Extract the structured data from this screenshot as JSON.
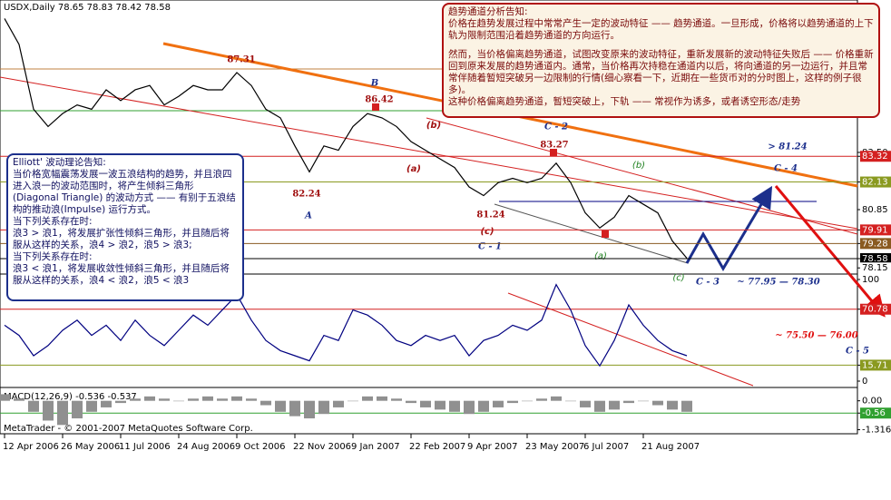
{
  "chart_data": [
    {
      "type": "line",
      "title": "USDX,Daily  78.65 78.83 78.42 78.58",
      "color": "#000000",
      "categories": [
        "12 Apr 2006",
        null,
        null,
        null,
        "26 May 2006",
        null,
        null,
        null,
        "11 Jul 2006",
        null,
        null,
        null,
        "24 Aug 2006",
        null,
        null,
        null,
        "9 Oct 2006",
        null,
        null,
        null,
        "22 Nov 2006",
        null,
        null,
        null,
        "9 Jan 2007",
        null,
        null,
        null,
        "22 Feb 2007",
        null,
        null,
        null,
        "9 Apr 2007",
        null,
        null,
        null,
        "23 May 2007",
        null,
        null,
        null,
        "6 Jul 2007",
        null,
        null,
        null,
        "21 Aug 2007",
        null,
        null,
        null
      ],
      "values": [
        89.7,
        88.5,
        85.5,
        84.7,
        85.3,
        85.7,
        85.5,
        86.4,
        85.9,
        86.4,
        86.6,
        85.7,
        86.1,
        86.6,
        86.4,
        86.4,
        87.2,
        86.6,
        85.5,
        85.1,
        83.8,
        82.6,
        83.8,
        83.6,
        84.7,
        85.3,
        85.1,
        84.7,
        84.0,
        83.6,
        83.2,
        82.8,
        81.9,
        81.5,
        82.1,
        82.3,
        82.1,
        82.3,
        83.0,
        82.1,
        80.7,
        80.0,
        80.5,
        81.5,
        81.1,
        80.7,
        79.4,
        78.6
      ],
      "ylim": [
        77.95,
        90.56
      ],
      "yticks": [
        {
          "value": 83.5,
          "label": "83.50"
        },
        83.32,
        82.13,
        80.85,
        79.91,
        79.28,
        78.58,
        78.15
      ],
      "ytick_colors": [
        "#ffffff",
        "#d42020",
        "#8a9a20",
        "#ffffff",
        "#d42020",
        "#8a5a20",
        "#000000",
        "#ffffff"
      ],
      "annotations": [
        "87.31",
        "86.42",
        "B",
        "82.24",
        "A",
        "81.24",
        "83.27",
        "C - 2",
        "C - 1",
        "(b)",
        "(a)",
        "(c)",
        "(b)",
        "(a)",
        "(c)",
        "> 81.24",
        "C - 4",
        "C - 3",
        "~ 77.95 — 78.30",
        "~ 75.50 — 76.00",
        "C - 5"
      ]
    },
    {
      "type": "line",
      "color": "#000080",
      "values": [
        55,
        45,
        25,
        35,
        50,
        60,
        45,
        55,
        40,
        60,
        45,
        35,
        50,
        65,
        55,
        70,
        85,
        60,
        40,
        30,
        25,
        20,
        45,
        40,
        70,
        65,
        55,
        40,
        35,
        45,
        40,
        45,
        25,
        40,
        45,
        55,
        50,
        60,
        95,
        70,
        35,
        15,
        40,
        75,
        55,
        40,
        30,
        25
      ],
      "ylim": [
        0,
        100
      ],
      "yticks": [
        100,
        70.78,
        15.71,
        0
      ],
      "ytick_colors": [
        "#ffffff",
        "#d42020",
        "#8a9a20",
        "#ffffff"
      ]
    },
    {
      "type": "bar",
      "title": "MACD(12,26,9) -0.536 -0.537",
      "color": "#909090",
      "values": [
        0.3,
        0.1,
        -0.5,
        -0.9,
        -1.1,
        -0.8,
        -0.5,
        -0.3,
        -0.1,
        0.1,
        0.2,
        0.1,
        0.0,
        0.1,
        0.2,
        0.1,
        0.2,
        0.1,
        -0.2,
        -0.5,
        -0.7,
        -0.8,
        -0.6,
        -0.3,
        0.0,
        0.2,
        0.2,
        0.1,
        -0.1,
        -0.3,
        -0.4,
        -0.5,
        -0.6,
        -0.5,
        -0.3,
        -0.1,
        0.0,
        0.1,
        0.2,
        0.0,
        -0.3,
        -0.5,
        -0.4,
        -0.1,
        0.0,
        -0.2,
        -0.4,
        -0.5
      ],
      "ylim": [
        -1.5,
        0.4
      ],
      "yticks": [
        {
          "value": 0,
          "label": "0.00"
        },
        -0.56,
        -1.316
      ],
      "ytick_colors": [
        "#ffffff",
        "#30a030",
        "#ffffff"
      ]
    }
  ],
  "footer": "MetaTrader - © 2001-2007 MetaQuotes Software Corp.",
  "trend_box": {
    "title": "趋势通道分析告知:",
    "paragraphs": [
      "价格在趋势发展过程中常常产生一定的波动特征 —— 趋势通道。一旦形成，价格将以趋势通道的上下轨为限制范围沿着趋势通道的方向运行。",
      "然而，当价格偏离趋势通道，试图改变原来的波动特征，重新发展新的波动特征失败后 —— 价格重新回到原来发展的趋势通道内。通常，当价格再次持稳在通道内以后，将向通道的另一边运行，并且常常伴随着暂短突破另一边限制的行情(细心察看一下，近期在一些货币对的分时图上，这样的例子很多)。",
      "这种价格偏离趋势通道，暂短突破上，下轨 —— 常视作为诱多，或者诱空形态/走势"
    ]
  },
  "elliott_box": {
    "title": "Elliott' 波动理论告知:",
    "paragraphs": [
      "当价格宽幅震荡发展一波五浪结构的趋势，并且浪四进入浪一的波动范围时，将产生倾斜三角形(Diagonal Triangle) 的波动方式 —— 有别于五浪结构的推动浪(Impulse) 运行方式。",
      "当下列关系存在时:",
      "浪3 > 浪1，将发展扩张性倾斜三角形，并且随后将服从这样的关系，浪4 > 浪2，浪5 > 浪3;",
      "当下列关系存在时:",
      "浪3 < 浪1，将发展收敛性倾斜三角形，并且随后将服从这样的关系，浪4 < 浪2，浪5 < 浪3"
    ]
  }
}
